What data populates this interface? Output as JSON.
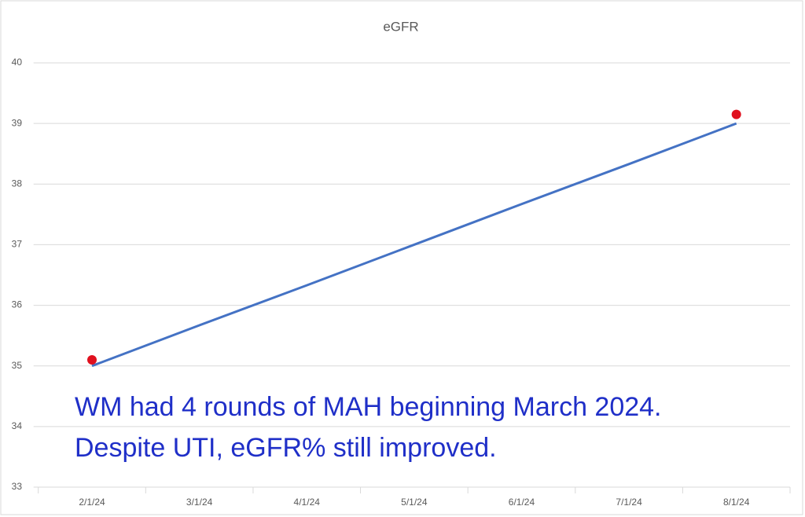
{
  "chart_data": {
    "type": "line",
    "title": "eGFR",
    "categories": [
      "2/1/24",
      "3/1/24",
      "4/1/24",
      "5/1/24",
      "6/1/24",
      "7/1/24",
      "8/1/24"
    ],
    "series": [
      {
        "color": "#4472c4",
        "values": [
          35,
          35.67,
          36.33,
          37,
          37.67,
          38.33,
          39
        ],
        "marker": false,
        "line": true
      },
      {
        "color": "#e0101e",
        "values": [
          35.1,
          null,
          null,
          null,
          null,
          null,
          39.15
        ],
        "marker": true,
        "line": false
      }
    ],
    "ylim": [
      33,
      40
    ],
    "yticks": [
      33,
      34,
      35,
      36,
      37,
      38,
      39,
      40
    ],
    "grid": true,
    "annotations": [
      "WM had 4 rounds of MAH beginning March 2024.",
      "Despite UTI, eGFR% still improved."
    ],
    "annotation_color": "#1f2fc8"
  }
}
